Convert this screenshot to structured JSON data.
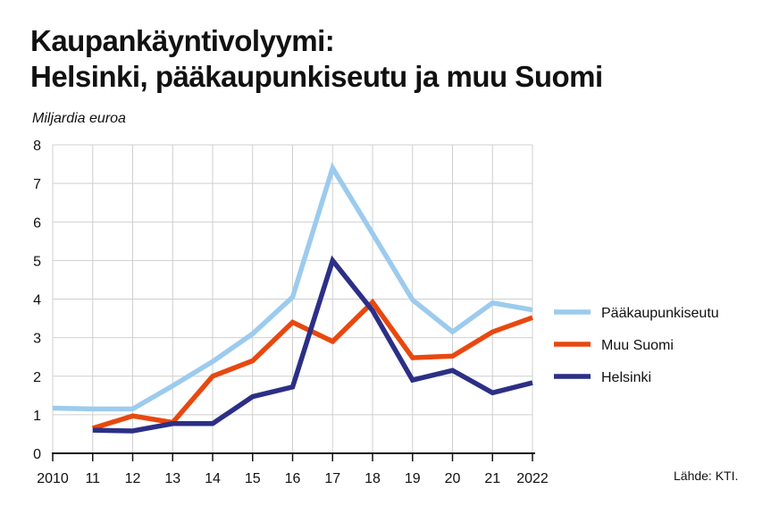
{
  "chart_data": {
    "type": "line",
    "title_line1": "Kaupankäyntivolyymi:",
    "title_line2": "Helsinki, pääkaupunkiseutu ja muu Suomi",
    "ylabel": "Miljardia euroa",
    "source": "Lähde: KTI.",
    "categories": [
      "2010",
      "11",
      "12",
      "13",
      "14",
      "15",
      "16",
      "17",
      "18",
      "19",
      "20",
      "21",
      "2022"
    ],
    "ylim": [
      0,
      8
    ],
    "yticks": [
      "0",
      "1",
      "2",
      "3",
      "4",
      "5",
      "6",
      "7",
      "8"
    ],
    "grid": true,
    "legend_position": "right",
    "series": [
      {
        "name": "Pääkaupunkiseutu",
        "color": "#9ccbee",
        "values": [
          1.17,
          1.15,
          1.15,
          1.75,
          2.38,
          3.1,
          4.05,
          7.4,
          5.7,
          3.98,
          3.15,
          3.9,
          3.72
        ]
      },
      {
        "name": "Muu Suomi",
        "color": "#e8480f",
        "values": [
          null,
          0.65,
          0.97,
          0.8,
          2.0,
          2.4,
          3.4,
          2.9,
          3.92,
          2.48,
          2.52,
          3.15,
          3.52
        ]
      },
      {
        "name": "Helsinki",
        "color": "#2c2f86",
        "values": [
          null,
          0.6,
          0.58,
          0.77,
          0.77,
          1.47,
          1.72,
          5.0,
          3.7,
          1.9,
          2.15,
          1.57,
          1.83
        ]
      }
    ]
  }
}
